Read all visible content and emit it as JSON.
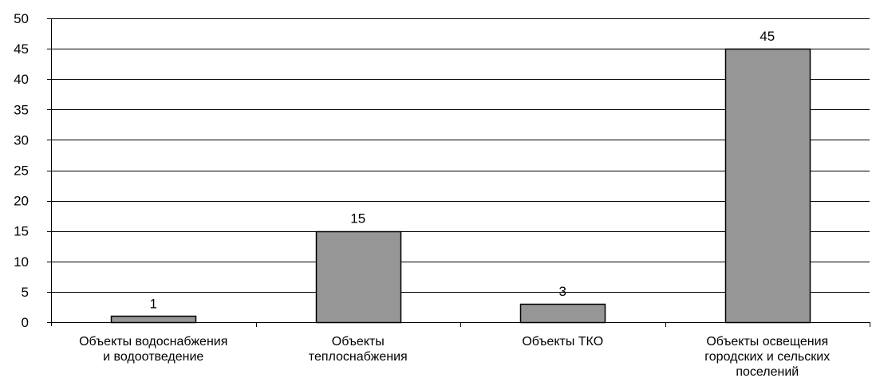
{
  "chart_data": {
    "type": "bar",
    "title": "",
    "xlabel": "",
    "ylabel": "",
    "categories": [
      [
        "Объекты водоснабжения",
        "и водоотведение"
      ],
      [
        "Объекты",
        "теплоснабжения"
      ],
      [
        "Объекты ТКО"
      ],
      [
        "Объекты освещения",
        "городских и сельских",
        "поселений"
      ]
    ],
    "values": [
      1,
      15,
      3,
      45
    ],
    "ylim": [
      0,
      50
    ],
    "yticks": [
      0,
      5,
      10,
      15,
      20,
      25,
      30,
      35,
      40,
      45,
      50
    ],
    "grid": true,
    "legend": "none",
    "colors": {
      "bar_fill": "#969696",
      "bar_stroke": "#000000",
      "grid": "#000000",
      "axis": "#000000"
    }
  }
}
